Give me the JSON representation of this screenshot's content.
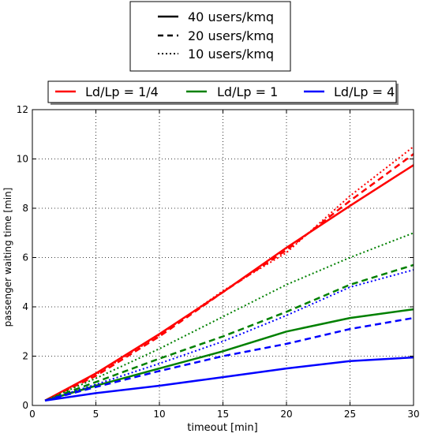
{
  "chart_data": {
    "type": "line",
    "xlabel": "timeout [min]",
    "ylabel": "passenger waiting time [min]",
    "xlim": [
      0,
      30
    ],
    "ylim": [
      0,
      12
    ],
    "x_ticks": [
      "0",
      "5",
      "10",
      "15",
      "20",
      "25",
      "30"
    ],
    "y_ticks": [
      "0",
      "2",
      "4",
      "6",
      "8",
      "10",
      "12"
    ],
    "grid": true,
    "x": [
      1,
      5,
      10,
      15,
      20,
      25,
      30
    ],
    "style_legend": {
      "placement": "top-center",
      "entries": [
        {
          "label": "40 users/kmq",
          "linestyle": "solid"
        },
        {
          "label": "20 users/kmq",
          "linestyle": "dashed"
        },
        {
          "label": "10 users/kmq",
          "linestyle": "dotted"
        }
      ]
    },
    "color_legend": {
      "placement": "top, above plot",
      "entries": [
        {
          "label": "Ld/Lp = 1/4",
          "color": "#ff0000"
        },
        {
          "label": "Ld/Lp = 1",
          "color": "#008000"
        },
        {
          "label": "Ld/Lp = 4",
          "color": "#0000ff"
        }
      ]
    },
    "series": [
      {
        "legend": "Ld/Lp = 1/4 / 40 users/kmq",
        "color": "#ff0000",
        "linestyle": "solid",
        "values": [
          0.2,
          1.3,
          2.9,
          4.6,
          6.4,
          8.1,
          9.75
        ]
      },
      {
        "legend": "Ld/Lp = 1/4 / 20 users/kmq",
        "color": "#ff0000",
        "linestyle": "dashed",
        "values": [
          0.2,
          1.2,
          2.8,
          4.6,
          6.3,
          8.3,
          10.2
        ]
      },
      {
        "legend": "Ld/Lp = 1/4 / 10 users/kmq",
        "color": "#ff0000",
        "linestyle": "dotted",
        "values": [
          0.2,
          1.25,
          2.85,
          4.65,
          6.2,
          8.5,
          10.5
        ]
      },
      {
        "legend": "Ld/Lp = 1 / 40 users/kmq",
        "color": "#008000",
        "linestyle": "solid",
        "values": [
          0.2,
          0.8,
          1.5,
          2.2,
          3.0,
          3.55,
          3.9
        ]
      },
      {
        "legend": "Ld/Lp = 1 / 20 users/kmq",
        "color": "#008000",
        "linestyle": "dashed",
        "values": [
          0.2,
          0.95,
          1.9,
          2.8,
          3.8,
          4.9,
          5.7
        ]
      },
      {
        "legend": "Ld/Lp = 1 / 10 users/kmq",
        "color": "#008000",
        "linestyle": "dotted",
        "values": [
          0.2,
          1.1,
          2.3,
          3.6,
          4.9,
          6.0,
          7.0
        ]
      },
      {
        "legend": "Ld/Lp = 4 / 40 users/kmq",
        "color": "#0000ff",
        "linestyle": "solid",
        "values": [
          0.2,
          0.5,
          0.8,
          1.15,
          1.5,
          1.8,
          1.95
        ]
      },
      {
        "legend": "Ld/Lp = 4 / 20 users/kmq",
        "color": "#0000ff",
        "linestyle": "dashed",
        "values": [
          0.2,
          0.75,
          1.4,
          2.0,
          2.5,
          3.1,
          3.55
        ]
      },
      {
        "legend": "Ld/Lp = 4 / 10 users/kmq",
        "color": "#0000ff",
        "linestyle": "dotted",
        "values": [
          0.2,
          0.85,
          1.7,
          2.6,
          3.65,
          4.8,
          5.5
        ]
      }
    ]
  }
}
